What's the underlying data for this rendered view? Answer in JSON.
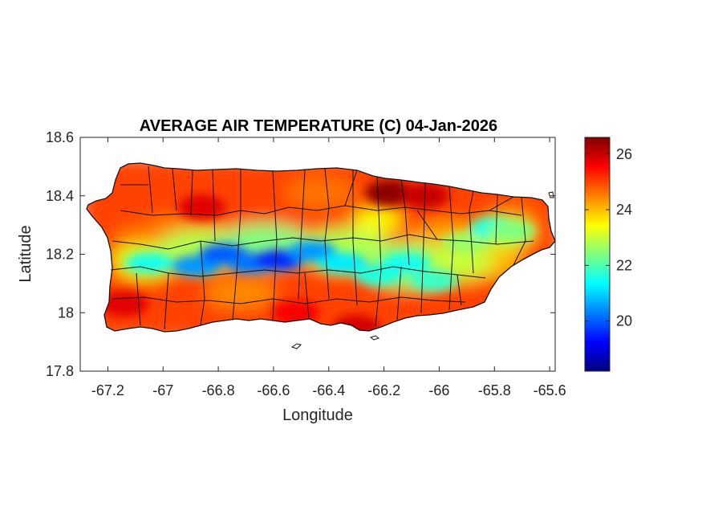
{
  "chart_data": {
    "type": "heatmap",
    "title": "AVERAGE AIR TEMPERATURE (C) 04-Jan-2026",
    "xlabel": "Longitude",
    "ylabel": "Latitude",
    "xlim": [
      -67.3,
      -65.58
    ],
    "ylim": [
      17.8,
      18.6
    ],
    "x_ticks": [
      -67.2,
      -67,
      -66.8,
      -66.6,
      -66.4,
      -66.2,
      -66,
      -65.8,
      -65.6
    ],
    "x_tick_labels": [
      "-67.2",
      "-67",
      "-66.8",
      "-66.6",
      "-66.4",
      "-66.2",
      "-66",
      "-65.8",
      "-65.6"
    ],
    "y_ticks": [
      17.8,
      18,
      18.2,
      18.4,
      18.6
    ],
    "y_tick_labels": [
      "17.8",
      "18",
      "18.2",
      "18.4",
      "18.6"
    ],
    "colorbar": {
      "colormap": "jet",
      "range": [
        18.2,
        26.6
      ],
      "ticks": [
        20,
        22,
        24,
        26
      ],
      "tick_labels": [
        "20",
        "22",
        "24",
        "26"
      ]
    },
    "grid": false,
    "cold_band_points": [
      {
        "lon": -67.05,
        "lat": 18.17,
        "temp": 21.5
      },
      {
        "lon": -66.88,
        "lat": 18.16,
        "temp": 20.5
      },
      {
        "lon": -66.78,
        "lat": 18.2,
        "temp": 20.0
      },
      {
        "lon": -66.68,
        "lat": 18.17,
        "temp": 20.2
      },
      {
        "lon": -66.58,
        "lat": 18.18,
        "temp": 19.6
      },
      {
        "lon": -66.46,
        "lat": 18.21,
        "temp": 20.5
      },
      {
        "lon": -66.35,
        "lat": 18.17,
        "temp": 21.2
      },
      {
        "lon": -66.22,
        "lat": 18.13,
        "temp": 21.6
      },
      {
        "lon": -66.12,
        "lat": 18.17,
        "temp": 21.5
      },
      {
        "lon": -66.02,
        "lat": 18.11,
        "temp": 21.8
      },
      {
        "lon": -65.9,
        "lat": 18.24,
        "temp": 22.6
      },
      {
        "lon": -65.8,
        "lat": 18.29,
        "temp": 21.6
      },
      {
        "lon": -65.74,
        "lat": 18.28,
        "temp": 22.4
      }
    ],
    "warm_points": [
      {
        "lon": -66.18,
        "lat": 18.41,
        "temp": 26.5
      },
      {
        "lon": -66.05,
        "lat": 18.4,
        "temp": 26.0
      },
      {
        "lon": -66.86,
        "lat": 18.36,
        "temp": 25.8
      },
      {
        "lon": -66.3,
        "lat": 17.95,
        "temp": 25.9
      },
      {
        "lon": -66.52,
        "lat": 18.0,
        "temp": 25.6
      },
      {
        "lon": -67.14,
        "lat": 18.03,
        "temp": 25.8
      }
    ]
  }
}
